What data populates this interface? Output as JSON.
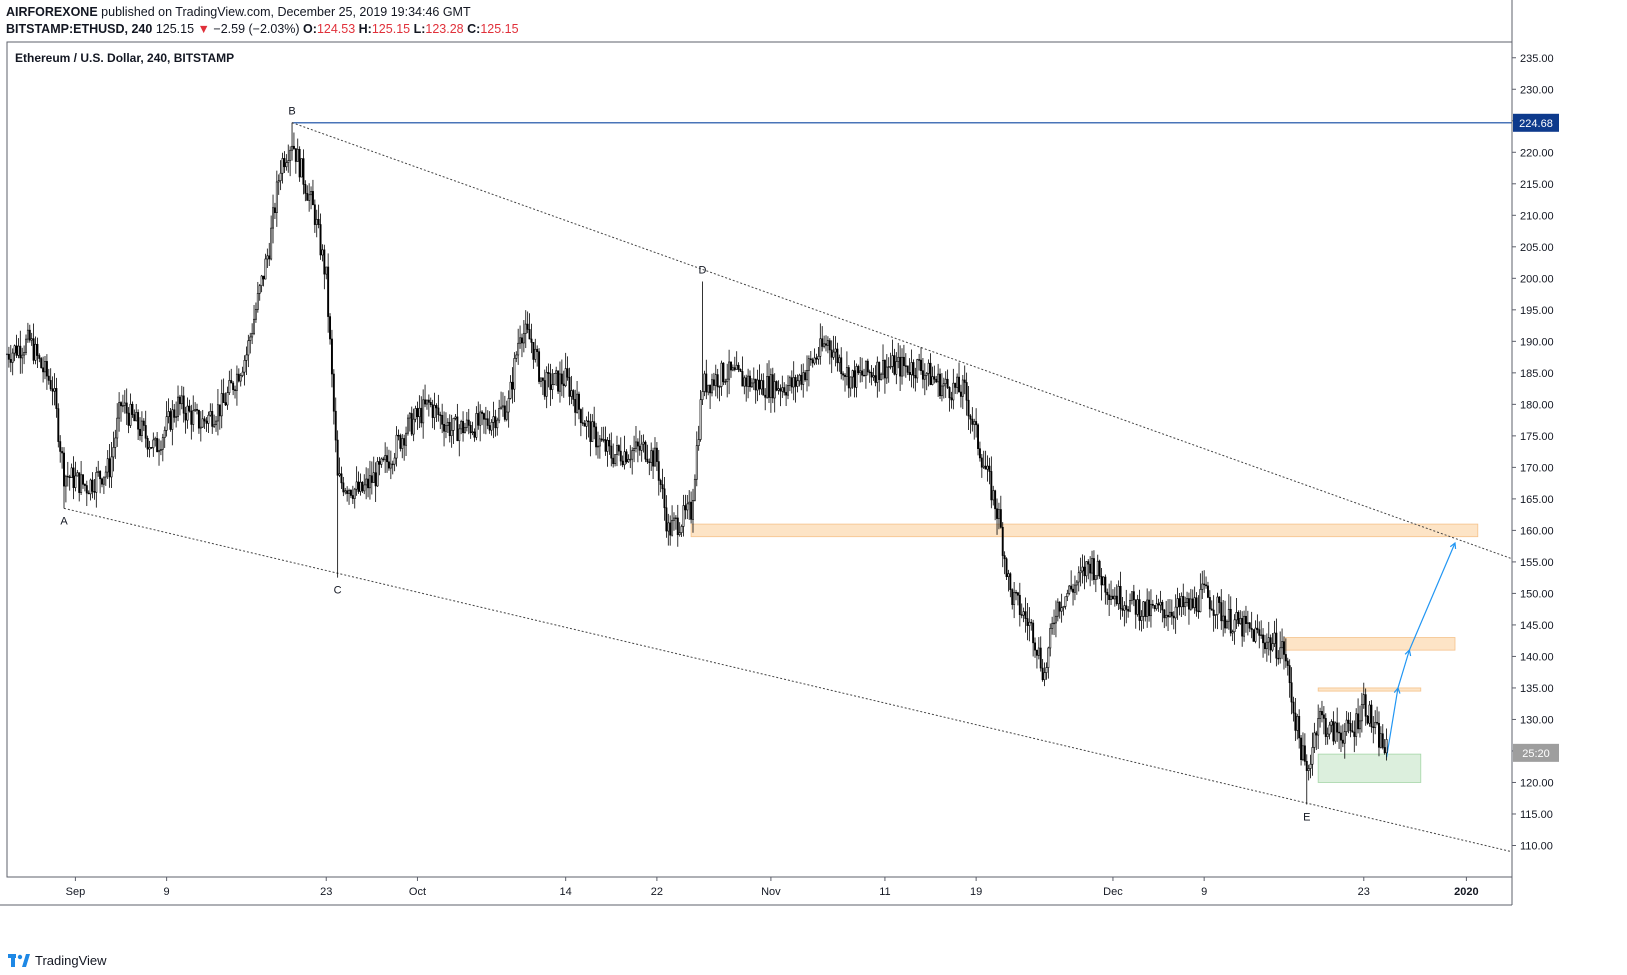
{
  "header": {
    "author": "AIRFOREXONE",
    "published_text": "published on TradingView.com, December 25, 2019 19:34:46 GMT",
    "symbol": "BITSTAMP:ETHUSD, 240",
    "last": "125.15",
    "change": "−2.59 (−2.03%)",
    "o_label": "O:",
    "o_value": "124.53",
    "h_label": "H:",
    "h_value": "125.15",
    "l_label": "L:",
    "l_value": "123.28",
    "c_label": "C:",
    "c_value": "125.15"
  },
  "footer": {
    "brand": "TradingView"
  },
  "colors": {
    "candle": "#000000",
    "up_arrow_line": "#2196f3",
    "horizontal_line": "#0d47a1",
    "orange_zone": "#fde4c6",
    "green_zone": "#dcefdd",
    "price_badge": "#0d3a8c",
    "countdown_badge": "#9e9e9e"
  },
  "chart_data": {
    "type": "candlestick",
    "title": "Ethereum / U.S. Dollar, 240, BITSTAMP",
    "interval": "240",
    "exchange": "BITSTAMP",
    "x_range": [
      "2019-08-26",
      "2020-01-05"
    ],
    "ylim": [
      105,
      237.5
    ],
    "y_ticks": [
      "235.00",
      "230.00",
      "225.00",
      "220.00",
      "215.00",
      "210.00",
      "205.00",
      "200.00",
      "195.00",
      "190.00",
      "185.00",
      "180.00",
      "175.00",
      "170.00",
      "165.00",
      "160.00",
      "155.00",
      "150.00",
      "145.00",
      "140.00",
      "135.00",
      "130.00",
      "125.00",
      "120.00",
      "115.00",
      "110.00"
    ],
    "x_ticks": [
      {
        "date": "2019-09-01",
        "label": "Sep"
      },
      {
        "date": "2019-09-09",
        "label": "9"
      },
      {
        "date": "2019-09-23",
        "label": "23"
      },
      {
        "date": "2019-10-01",
        "label": "Oct"
      },
      {
        "date": "2019-10-14",
        "label": "14"
      },
      {
        "date": "2019-10-22",
        "label": "22"
      },
      {
        "date": "2019-11-01",
        "label": "Nov"
      },
      {
        "date": "2019-11-11",
        "label": "11"
      },
      {
        "date": "2019-11-19",
        "label": "19"
      },
      {
        "date": "2019-12-01",
        "label": "Dec"
      },
      {
        "date": "2019-12-09",
        "label": "9"
      },
      {
        "date": "2019-12-23",
        "label": "23"
      },
      {
        "date": "2020-01-01",
        "label": "2020",
        "bold": true
      }
    ],
    "price_path": [
      {
        "date": "2019-08-26",
        "price": 188
      },
      {
        "date": "2019-08-28",
        "price": 190
      },
      {
        "date": "2019-08-29",
        "price": 186
      },
      {
        "date": "2019-08-30",
        "price": 183
      },
      {
        "date": "2019-08-31",
        "price": 169
      },
      {
        "date": "2019-09-02",
        "price": 167
      },
      {
        "date": "2019-09-04",
        "price": 170
      },
      {
        "date": "2019-09-05",
        "price": 180
      },
      {
        "date": "2019-09-08",
        "price": 173
      },
      {
        "date": "2019-09-10",
        "price": 180
      },
      {
        "date": "2019-09-12",
        "price": 177
      },
      {
        "date": "2019-09-14",
        "price": 180
      },
      {
        "date": "2019-09-16",
        "price": 188
      },
      {
        "date": "2019-09-18",
        "price": 205
      },
      {
        "date": "2019-09-19",
        "price": 218
      },
      {
        "date": "2019-09-20",
        "price": 222
      },
      {
        "date": "2019-09-22",
        "price": 210
      },
      {
        "date": "2019-09-23",
        "price": 200
      },
      {
        "date": "2019-09-24",
        "price": 168
      },
      {
        "date": "2019-09-26",
        "price": 166
      },
      {
        "date": "2019-09-28",
        "price": 170
      },
      {
        "date": "2019-09-30",
        "price": 176
      },
      {
        "date": "2019-10-02",
        "price": 180
      },
      {
        "date": "2019-10-04",
        "price": 176
      },
      {
        "date": "2019-10-07",
        "price": 177
      },
      {
        "date": "2019-10-09",
        "price": 180
      },
      {
        "date": "2019-10-10",
        "price": 192
      },
      {
        "date": "2019-10-11",
        "price": 190
      },
      {
        "date": "2019-10-12",
        "price": 183
      },
      {
        "date": "2019-10-14",
        "price": 184
      },
      {
        "date": "2019-10-16",
        "price": 176
      },
      {
        "date": "2019-10-18",
        "price": 172
      },
      {
        "date": "2019-10-21",
        "price": 173
      },
      {
        "date": "2019-10-22",
        "price": 171
      },
      {
        "date": "2019-10-23",
        "price": 160
      },
      {
        "date": "2019-10-25",
        "price": 163
      },
      {
        "date": "2019-10-26",
        "price": 183
      },
      {
        "date": "2019-10-28",
        "price": 185
      },
      {
        "date": "2019-10-31",
        "price": 183
      },
      {
        "date": "2019-11-03",
        "price": 183
      },
      {
        "date": "2019-11-06",
        "price": 190
      },
      {
        "date": "2019-11-08",
        "price": 184
      },
      {
        "date": "2019-11-11",
        "price": 186
      },
      {
        "date": "2019-11-14",
        "price": 186
      },
      {
        "date": "2019-11-16",
        "price": 183
      },
      {
        "date": "2019-11-18",
        "price": 182
      },
      {
        "date": "2019-11-19",
        "price": 175
      },
      {
        "date": "2019-11-21",
        "price": 162
      },
      {
        "date": "2019-11-22",
        "price": 150
      },
      {
        "date": "2019-11-24",
        "price": 144
      },
      {
        "date": "2019-11-25",
        "price": 137
      },
      {
        "date": "2019-11-26",
        "price": 148
      },
      {
        "date": "2019-11-28",
        "price": 152
      },
      {
        "date": "2019-11-29",
        "price": 155
      },
      {
        "date": "2019-12-01",
        "price": 150
      },
      {
        "date": "2019-12-04",
        "price": 147
      },
      {
        "date": "2019-12-08",
        "price": 148
      },
      {
        "date": "2019-12-09",
        "price": 150
      },
      {
        "date": "2019-12-11",
        "price": 146
      },
      {
        "date": "2019-12-13",
        "price": 144
      },
      {
        "date": "2019-12-16",
        "price": 141
      },
      {
        "date": "2019-12-17",
        "price": 130
      },
      {
        "date": "2019-12-18",
        "price": 121
      },
      {
        "date": "2019-12-19",
        "price": 131
      },
      {
        "date": "2019-12-20",
        "price": 128
      },
      {
        "date": "2019-12-22",
        "price": 128
      },
      {
        "date": "2019-12-23",
        "price": 133
      },
      {
        "date": "2019-12-24",
        "price": 128
      },
      {
        "date": "2019-12-25",
        "price": 125
      }
    ],
    "wave_labels": [
      {
        "label": "A",
        "date": "2019-08-31",
        "price": 163.5,
        "pos": "below"
      },
      {
        "label": "B",
        "date": "2019-09-20",
        "price": 224.7,
        "pos": "above"
      },
      {
        "label": "C",
        "date": "2019-09-24",
        "price": 152.5,
        "pos": "below"
      },
      {
        "label": "D",
        "date": "2019-10-26",
        "price": 199.5,
        "pos": "above"
      },
      {
        "label": "E",
        "date": "2019-12-18",
        "price": 116.5,
        "pos": "below"
      }
    ],
    "trendlines": [
      {
        "name": "upper",
        "from": {
          "date": "2019-09-20",
          "price": 224.7
        },
        "to": {
          "date": "2020-01-05",
          "price": 155.5
        }
      },
      {
        "name": "lower",
        "from": {
          "date": "2019-08-31",
          "price": 163.5
        },
        "to": {
          "date": "2020-01-05",
          "price": 109
        }
      }
    ],
    "horizontal_line": {
      "price": 224.68,
      "label": "224.68"
    },
    "zones": [
      {
        "name": "resistance-zone-160",
        "from_date": "2019-10-25",
        "to_date": "2020-01-02",
        "low": 159,
        "high": 161
      },
      {
        "name": "resistance-zone-142",
        "from_date": "2019-12-16",
        "to_date": "2019-12-31",
        "low": 141,
        "high": 143
      },
      {
        "name": "resistance-zone-135",
        "from_date": "2019-12-19",
        "to_date": "2019-12-28",
        "low": 134.5,
        "high": 135
      },
      {
        "name": "support-zone-122",
        "from_date": "2019-12-19",
        "to_date": "2019-12-28",
        "low": 120,
        "high": 124.5
      }
    ],
    "projection_path": [
      {
        "date": "2019-12-25",
        "price": 124
      },
      {
        "date": "2019-12-26",
        "price": 135
      },
      {
        "date": "2019-12-27",
        "price": 141
      },
      {
        "date": "2019-12-31",
        "price": 158
      }
    ],
    "current_price_badge": {
      "price": 124.7,
      "label": "25:20"
    }
  }
}
